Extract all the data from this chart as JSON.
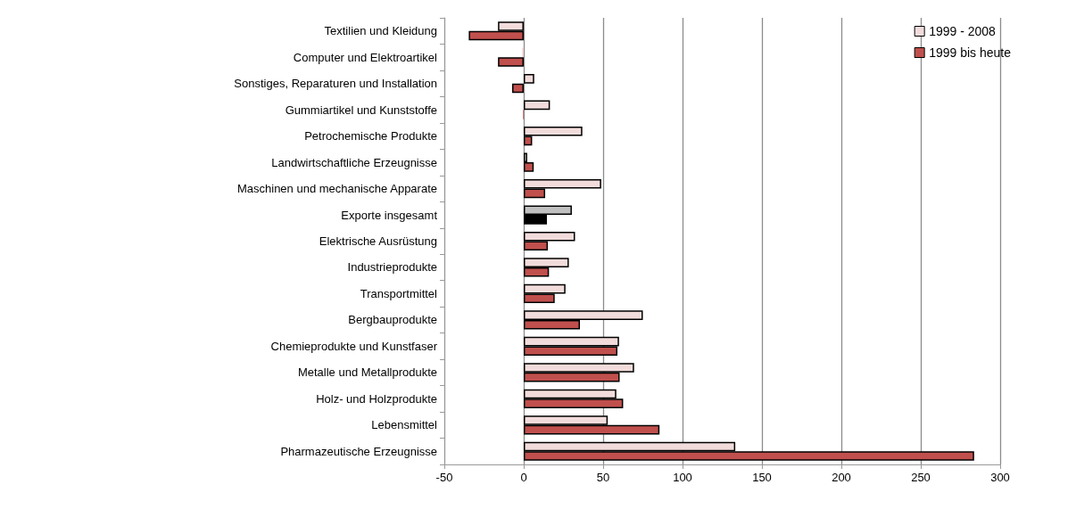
{
  "chart_data": {
    "type": "bar",
    "orientation": "horizontal",
    "categories": [
      "Textilien und Kleidung",
      "Computer und Elektroartikel",
      "Sonstiges, Reparaturen und Installation",
      "Gummiartikel und Kunststoffe",
      "Petrochemische Produkte",
      "Landwirtschaftliche Erzeugnisse",
      "Maschinen und mechanische Apparate",
      "Exporte insgesamt",
      "Elektrische Ausrüstung",
      "Industrieprodukte",
      "Transportmittel",
      "Bergbauprodukte",
      "Chemieprodukte und Kunstfaser",
      "Metalle und Metallprodukte",
      "Holz- und Holzprodukte",
      "Lebensmittel",
      "Pharmazeutische Erzeugnisse"
    ],
    "series": [
      {
        "name": "1999 - 2008",
        "color": "#f2dcdb",
        "colors": [
          "#f2dcdb",
          "#f2dcdb",
          "#f2dcdb",
          "#f2dcdb",
          "#f2dcdb",
          "#f2dcdb",
          "#f2dcdb",
          "#c0c0c0",
          "#f2dcdb",
          "#f2dcdb",
          "#f2dcdb",
          "#f2dcdb",
          "#f2dcdb",
          "#f2dcdb",
          "#f2dcdb",
          "#f2dcdb",
          "#f2dcdb"
        ],
        "values": [
          -16.2,
          -1.1,
          6.6,
          16.5,
          36.9,
          2.2,
          48.8,
          30.3,
          32.3,
          28.4,
          26.3,
          75,
          60,
          69.5,
          58.3,
          52.9,
          133.2
        ]
      },
      {
        "name": "1999 bis heute",
        "color": "#c0504d",
        "colors": [
          "#c0504d",
          "#c0504d",
          "#c0504d",
          "#c0504d",
          "#c0504d",
          "#c0504d",
          "#c0504d",
          "#000000",
          "#c0504d",
          "#c0504d",
          "#c0504d",
          "#c0504d",
          "#c0504d",
          "#c0504d",
          "#c0504d",
          "#c0504d",
          "#c0504d"
        ],
        "values": [
          -34.6,
          -16.2,
          -7.3,
          -0.4,
          5.3,
          6.3,
          13.5,
          14.6,
          15.2,
          15.9,
          19.5,
          35.4,
          59,
          60.4,
          62.6,
          85.5,
          283.6
        ]
      }
    ],
    "xlim": [
      -50,
      300
    ],
    "xticks": [
      -50,
      0,
      50,
      100,
      150,
      200,
      250,
      300
    ],
    "grid": "x",
    "legend": "top right"
  }
}
